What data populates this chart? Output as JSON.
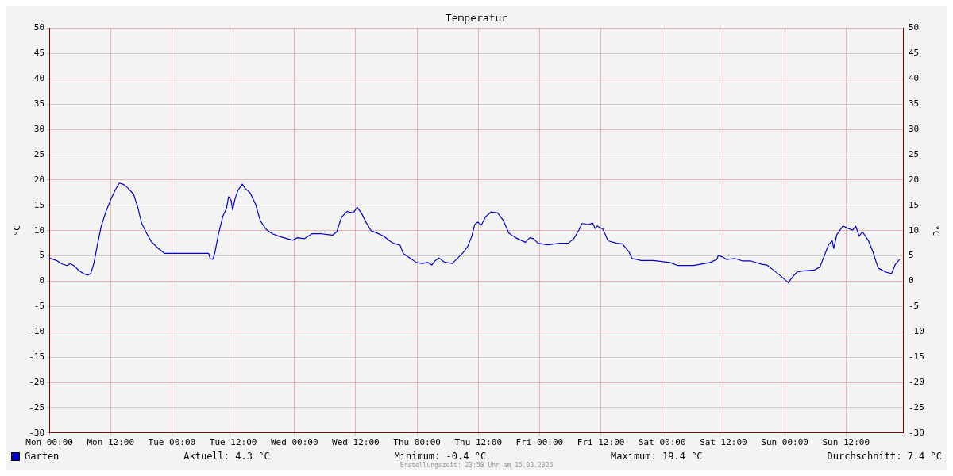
{
  "chart_data": {
    "type": "line",
    "title": "Temperatur",
    "ylabel": "°C",
    "y2label": "°C",
    "x": [
      "2026-03-09T00:00",
      "2026-03-09T01:24",
      "2026-03-09T02:30",
      "2026-03-09T03:30",
      "2026-03-09T04:06",
      "2026-03-09T04:48",
      "2026-03-09T05:42",
      "2026-03-09T06:42",
      "2026-03-09T07:30",
      "2026-03-09T08:06",
      "2026-03-09T08:42",
      "2026-03-09T09:24",
      "2026-03-09T10:12",
      "2026-03-09T11:06",
      "2026-03-09T12:06",
      "2026-03-09T12:54",
      "2026-03-09T13:42",
      "2026-03-09T14:36",
      "2026-03-09T15:24",
      "2026-03-09T16:30",
      "2026-03-09T17:18",
      "2026-03-09T18:06",
      "2026-03-09T19:06",
      "2026-03-09T20:00",
      "2026-03-09T21:18",
      "2026-03-09T22:36",
      "2026-03-10T07:12",
      "2026-03-10T07:30",
      "2026-03-10T08:00",
      "2026-03-10T08:24",
      "2026-03-10T09:06",
      "2026-03-10T10:00",
      "2026-03-10T10:42",
      "2026-03-10T11:06",
      "2026-03-10T11:36",
      "2026-03-10T11:54",
      "2026-03-10T12:24",
      "2026-03-10T13:00",
      "2026-03-10T13:48",
      "2026-03-10T14:18",
      "2026-03-10T15:18",
      "2026-03-10T16:24",
      "2026-03-10T17:18",
      "2026-03-10T18:24",
      "2026-03-10T19:36",
      "2026-03-10T21:12",
      "2026-03-10T23:42",
      "2026-03-11T00:36",
      "2026-03-11T01:54",
      "2026-03-11T03:30",
      "2026-03-11T05:06",
      "2026-03-11T06:42",
      "2026-03-11T07:30",
      "2026-03-11T08:18",
      "2026-03-11T09:12",
      "2026-03-11T10:18",
      "2026-03-11T11:30",
      "2026-03-11T12:18",
      "2026-03-11T13:06",
      "2026-03-11T14:00",
      "2026-03-11T15:00",
      "2026-03-11T16:12",
      "2026-03-11T17:30",
      "2026-03-11T18:36",
      "2026-03-11T19:24",
      "2026-03-11T20:42",
      "2026-03-11T21:18",
      "2026-03-11T22:36",
      "2026-03-11T23:54",
      "2026-03-12T01:00",
      "2026-03-12T02:06",
      "2026-03-12T02:54",
      "2026-03-12T03:30",
      "2026-03-12T04:18",
      "2026-03-12T05:18",
      "2026-03-12T06:54",
      "2026-03-12T07:42",
      "2026-03-12T08:54",
      "2026-03-12T09:54",
      "2026-03-12T10:42",
      "2026-03-12T11:18",
      "2026-03-12T11:54",
      "2026-03-12T12:36",
      "2026-03-12T13:24",
      "2026-03-12T14:30",
      "2026-03-12T15:48",
      "2026-03-12T16:54",
      "2026-03-12T18:00",
      "2026-03-12T19:18",
      "2026-03-12T21:12",
      "2026-03-12T22:06",
      "2026-03-12T22:48",
      "2026-03-12T23:42",
      "2026-03-13T01:36",
      "2026-03-13T04:00",
      "2026-03-13T05:36",
      "2026-03-13T06:42",
      "2026-03-13T07:42",
      "2026-03-13T08:18",
      "2026-03-13T09:36",
      "2026-03-13T10:24",
      "2026-03-13T10:54",
      "2026-03-13T11:18",
      "2026-03-13T12:24",
      "2026-03-13T13:24",
      "2026-03-13T15:06",
      "2026-03-13T16:12",
      "2026-03-13T17:30",
      "2026-03-13T18:06",
      "2026-03-13T19:54",
      "2026-03-13T22:18",
      "2026-03-14T01:30",
      "2026-03-14T03:06",
      "2026-03-14T06:12",
      "2026-03-14T09:24",
      "2026-03-14T10:42",
      "2026-03-14T11:00",
      "2026-03-14T11:48",
      "2026-03-14T12:36",
      "2026-03-14T14:12",
      "2026-03-14T15:48",
      "2026-03-14T17:24",
      "2026-03-14T19:18",
      "2026-03-14T20:30",
      "2026-03-14T21:18",
      "2026-03-14T22:24",
      "2026-03-14T23:42",
      "2026-03-15T00:42",
      "2026-03-15T01:30",
      "2026-03-15T02:24",
      "2026-03-15T03:24",
      "2026-03-15T05:48",
      "2026-03-15T06:54",
      "2026-03-15T07:42",
      "2026-03-15T08:36",
      "2026-03-15T09:18",
      "2026-03-15T09:36",
      "2026-03-15T10:12",
      "2026-03-15T11:24",
      "2026-03-15T12:30",
      "2026-03-15T13:18",
      "2026-03-15T13:54",
      "2026-03-15T14:36",
      "2026-03-15T15:12",
      "2026-03-15T16:24",
      "2026-03-15T17:12",
      "2026-03-15T18:18",
      "2026-03-15T19:48",
      "2026-03-15T20:54",
      "2026-03-15T21:42",
      "2026-03-15T22:30"
    ],
    "series": [
      {
        "name": "Garten",
        "color": "#0000cc",
        "values": [
          4.6,
          4.1,
          3.4,
          3.1,
          3.5,
          3.1,
          2.2,
          1.5,
          1.2,
          1.5,
          3.4,
          7.1,
          11,
          13.8,
          16.3,
          18,
          19.4,
          19.1,
          18.4,
          17.2,
          14.7,
          11.4,
          9.4,
          7.8,
          6.5,
          5.5,
          5.5,
          4.5,
          4.3,
          5.5,
          9.2,
          12.9,
          14.4,
          16.7,
          16,
          14.1,
          16.4,
          18.1,
          19.2,
          18.4,
          17.5,
          15.2,
          12,
          10.3,
          9.4,
          8.8,
          8.1,
          8.6,
          8.4,
          9.4,
          9.4,
          9.2,
          9.1,
          9.8,
          12.6,
          13.8,
          13.5,
          14.6,
          13.5,
          11.7,
          10,
          9.5,
          8.9,
          8,
          7.5,
          7.1,
          5.5,
          4.6,
          3.7,
          3.5,
          3.7,
          3.2,
          4,
          4.6,
          3.8,
          3.5,
          4.3,
          5.5,
          6.8,
          8.8,
          11.2,
          11.7,
          11.1,
          12.7,
          13.7,
          13.5,
          12,
          9.5,
          8.6,
          7.7,
          8.6,
          8.4,
          7.5,
          7.2,
          7.5,
          7.5,
          8.4,
          10.1,
          11.4,
          11.2,
          11.5,
          10.4,
          10.9,
          10.3,
          8,
          7.5,
          7.4,
          5.8,
          4.5,
          4.1,
          4.1,
          3.7,
          3.1,
          3.1,
          3.7,
          4.3,
          5.1,
          4.8,
          4.3,
          4.5,
          4,
          4,
          3.4,
          3.2,
          2.6,
          1.7,
          0.6,
          -0.3,
          0.8,
          1.8,
          2,
          2.2,
          2.8,
          4.9,
          7.2,
          8,
          6.5,
          9.2,
          10.9,
          10.4,
          10.1,
          10.9,
          8.9,
          9.8,
          8,
          6,
          2.6,
          1.8,
          1.5,
          3.4,
          4.3
        ]
      }
    ],
    "xlim": [
      "2026-03-09T00:00",
      "2026-03-15T23:18"
    ],
    "xticks": [
      {
        "value": "2026-03-09T00:00",
        "label": "Mon 00:00"
      },
      {
        "value": "2026-03-09T12:00",
        "label": "Mon 12:00"
      },
      {
        "value": "2026-03-10T00:00",
        "label": "Tue 00:00"
      },
      {
        "value": "2026-03-10T12:00",
        "label": "Tue 12:00"
      },
      {
        "value": "2026-03-11T00:00",
        "label": "Wed 00:00"
      },
      {
        "value": "2026-03-11T12:00",
        "label": "Wed 12:00"
      },
      {
        "value": "2026-03-12T00:00",
        "label": "Thu 00:00"
      },
      {
        "value": "2026-03-12T12:00",
        "label": "Thu 12:00"
      },
      {
        "value": "2026-03-13T00:00",
        "label": "Fri 00:00"
      },
      {
        "value": "2026-03-13T12:00",
        "label": "Fri 12:00"
      },
      {
        "value": "2026-03-14T00:00",
        "label": "Sat 00:00"
      },
      {
        "value": "2026-03-14T12:00",
        "label": "Sat 12:00"
      },
      {
        "value": "2026-03-15T00:00",
        "label": "Sun 00:00"
      },
      {
        "value": "2026-03-15T12:00",
        "label": "Sun 12:00"
      }
    ],
    "ylim": [
      -30,
      50
    ],
    "yticks": [
      -30,
      -25,
      -20,
      -15,
      -10,
      -5,
      0,
      5,
      10,
      15,
      20,
      25,
      30,
      35,
      40,
      45,
      50
    ],
    "y2lim": [
      -30,
      50
    ],
    "y2ticks": [
      -30,
      -25,
      -20,
      -15,
      -10,
      -5,
      0,
      5,
      10,
      15,
      20,
      25,
      30,
      35,
      40,
      45,
      50
    ],
    "grid": true,
    "legend": "bottom left",
    "marker": "none",
    "line_style": "solid",
    "annotations": [
      "Aktuell: 4.3 °C",
      "Minimum: -0.4 °C",
      "Maximum: 19.4 °C",
      "Durchschnitt: 7.4 °C",
      "Erstellungszeit: 23:58 Uhr am 15.03.2026"
    ]
  }
}
